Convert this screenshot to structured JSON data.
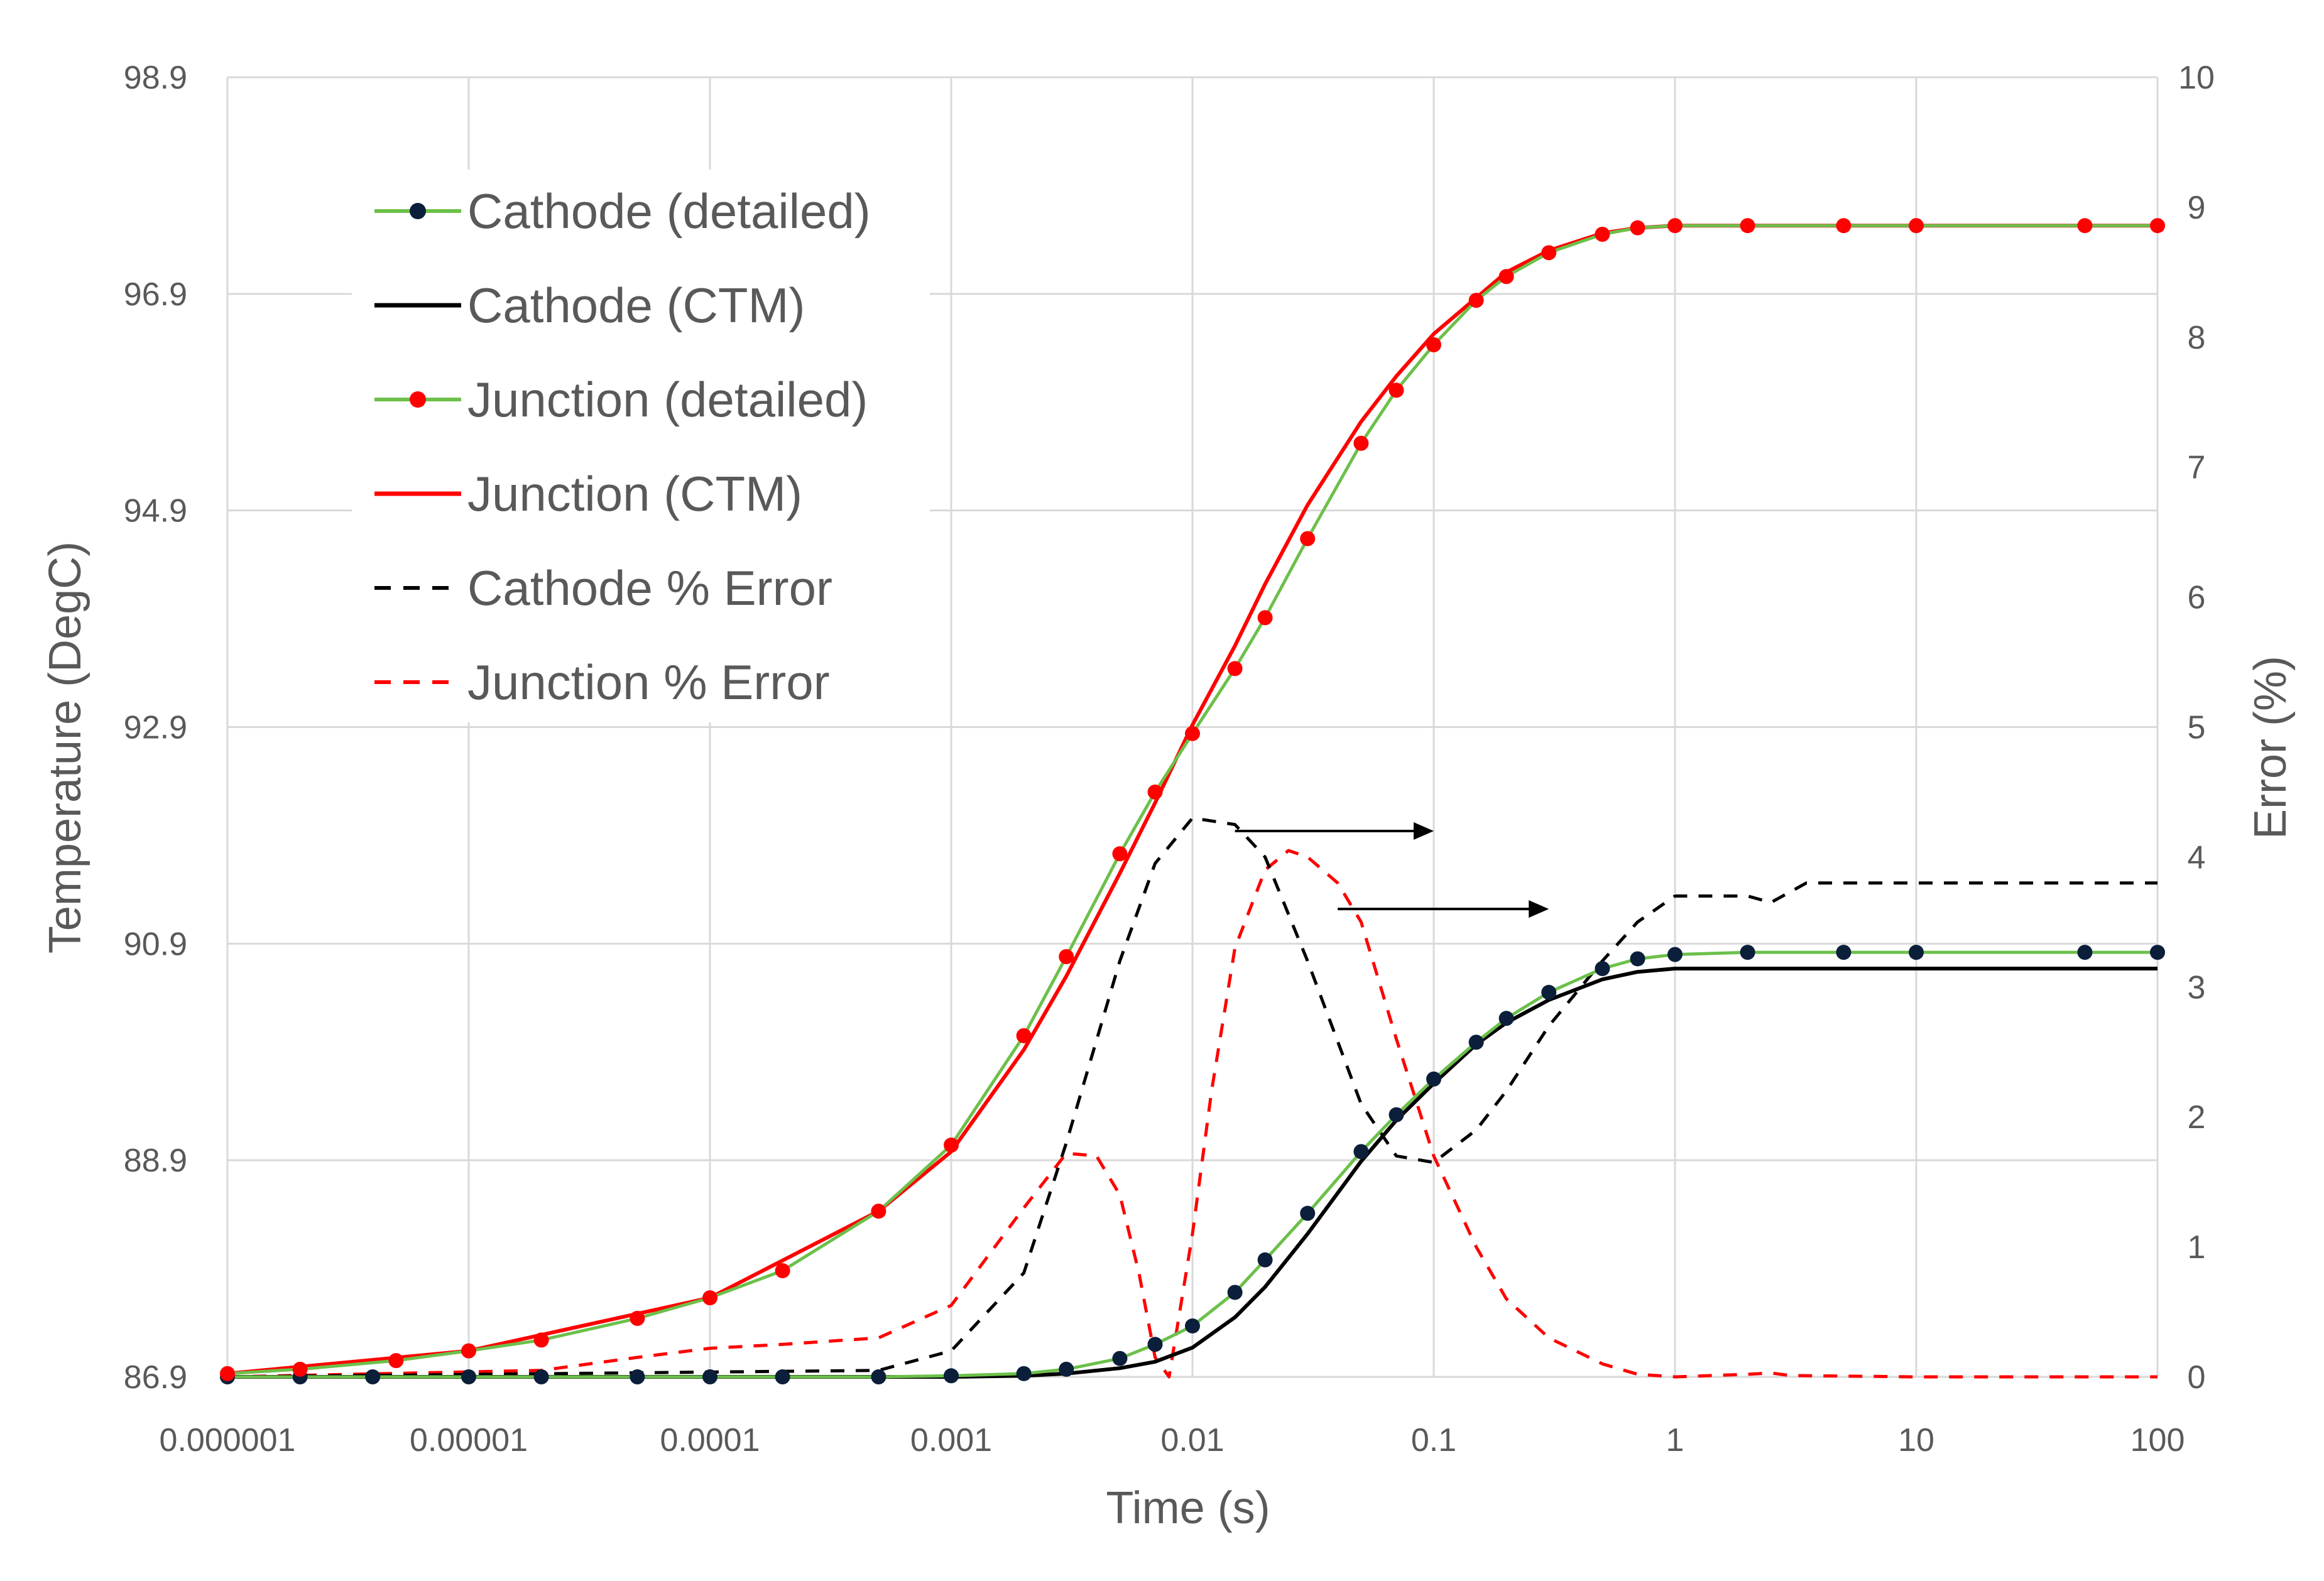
{
  "chart_data": {
    "type": "line",
    "xlabel": "Time (s)",
    "ylabel": "Temperature (DegC)",
    "y2label": "Error (%)",
    "x_scale": "log",
    "xlim": [
      1e-06,
      100
    ],
    "ylim": [
      86.9,
      98.9
    ],
    "y2lim": [
      0,
      10
    ],
    "grid": true,
    "legend_position": "top-left",
    "x_ticks": [
      "0.000001",
      "0.00001",
      "0.0001",
      "0.001",
      "0.01",
      "0.1",
      "1",
      "10",
      "100"
    ],
    "y_ticks": [
      "86.9",
      "88.9",
      "90.9",
      "92.9",
      "94.9",
      "96.9",
      "98.9"
    ],
    "y2_ticks": [
      "0",
      "1",
      "2",
      "3",
      "4",
      "5",
      "6",
      "7",
      "8",
      "9",
      "10"
    ],
    "colors": {
      "cathode_line": "#6cc04a",
      "cathode_marker": "#0b1f3a",
      "junction_marker": "#ff0000",
      "cathode_ctm": "#000000",
      "junction_ctm": "#ff0000",
      "cathode_error": "#000000",
      "junction_error": "#ff0000",
      "grid": "#d9d9d9"
    },
    "series": [
      {
        "name": "Cathode (detailed)",
        "axis": "left",
        "style": "line-markers",
        "x": [
          1e-06,
          2e-06,
          4e-06,
          1e-05,
          2e-05,
          5e-05,
          0.0001,
          0.0002,
          0.0005,
          0.001,
          0.002,
          0.003,
          0.005,
          0.007,
          0.01,
          0.015,
          0.02,
          0.03,
          0.05,
          0.07,
          0.1,
          0.15,
          0.2,
          0.3,
          0.5,
          0.7,
          1,
          2,
          5,
          10,
          50,
          100
        ],
        "y": [
          86.9,
          86.9,
          86.9,
          86.9,
          86.9,
          86.9,
          86.9,
          86.9,
          86.9,
          86.91,
          86.93,
          86.97,
          87.07,
          87.2,
          87.37,
          87.68,
          87.98,
          88.41,
          88.98,
          89.32,
          89.65,
          89.99,
          90.21,
          90.45,
          90.67,
          90.76,
          90.8,
          90.82,
          90.82,
          90.82,
          90.82,
          90.82
        ]
      },
      {
        "name": "Cathode (CTM)",
        "axis": "left",
        "style": "solid",
        "x": [
          1e-06,
          0.0001,
          0.001,
          0.002,
          0.003,
          0.005,
          0.007,
          0.01,
          0.015,
          0.02,
          0.03,
          0.05,
          0.07,
          0.1,
          0.15,
          0.2,
          0.3,
          0.5,
          0.7,
          1,
          2,
          5,
          10,
          100
        ],
        "y": [
          86.9,
          86.9,
          86.9,
          86.91,
          86.93,
          86.98,
          87.04,
          87.17,
          87.45,
          87.73,
          88.22,
          88.89,
          89.27,
          89.61,
          89.97,
          90.17,
          90.38,
          90.57,
          90.64,
          90.67,
          90.67,
          90.67,
          90.67,
          90.67
        ]
      },
      {
        "name": "Junction (detailed)",
        "axis": "left",
        "style": "line-markers",
        "x": [
          1e-06,
          2e-06,
          5e-06,
          1e-05,
          2e-05,
          5e-05,
          0.0001,
          0.0002,
          0.0005,
          0.001,
          0.002,
          0.003,
          0.005,
          0.007,
          0.01,
          0.015,
          0.02,
          0.03,
          0.05,
          0.07,
          0.1,
          0.15,
          0.2,
          0.3,
          0.5,
          0.7,
          1,
          2,
          5,
          10,
          50,
          100
        ],
        "y": [
          86.93,
          86.97,
          87.05,
          87.14,
          87.24,
          87.44,
          87.63,
          87.88,
          88.43,
          89.04,
          90.05,
          90.78,
          91.73,
          92.3,
          92.84,
          93.44,
          93.91,
          94.64,
          95.52,
          96.01,
          96.43,
          96.84,
          97.06,
          97.28,
          97.45,
          97.51,
          97.53,
          97.53,
          97.53,
          97.53,
          97.53,
          97.53
        ]
      },
      {
        "name": "Junction (CTM)",
        "axis": "left",
        "style": "solid",
        "x": [
          1e-06,
          1e-05,
          0.0001,
          0.0005,
          0.001,
          0.002,
          0.003,
          0.005,
          0.007,
          0.01,
          0.015,
          0.02,
          0.03,
          0.05,
          0.07,
          0.1,
          0.2,
          0.3,
          0.5,
          0.7,
          1,
          2,
          5,
          10,
          100
        ],
        "y": [
          86.93,
          87.14,
          87.63,
          88.43,
          88.98,
          89.92,
          90.6,
          91.55,
          92.2,
          92.92,
          93.65,
          94.22,
          94.95,
          95.72,
          96.14,
          96.53,
          97.1,
          97.3,
          97.46,
          97.51,
          97.53,
          97.53,
          97.53,
          97.53,
          97.53
        ]
      },
      {
        "name": "Cathode % Error",
        "axis": "right",
        "style": "dashed",
        "x": [
          1e-06,
          0.0005,
          0.001,
          0.002,
          0.003,
          0.005,
          0.007,
          0.01,
          0.015,
          0.02,
          0.03,
          0.05,
          0.07,
          0.1,
          0.15,
          0.2,
          0.3,
          0.5,
          0.7,
          1,
          2,
          2.5,
          3.5,
          10,
          100
        ],
        "y": [
          0,
          0.05,
          0.2,
          0.8,
          1.8,
          3.2,
          3.95,
          4.3,
          4.25,
          4.0,
          3.2,
          2.1,
          1.7,
          1.65,
          1.9,
          2.2,
          2.7,
          3.2,
          3.5,
          3.7,
          3.7,
          3.65,
          3.8,
          3.8,
          3.8
        ]
      },
      {
        "name": "Junction % Error",
        "axis": "right",
        "style": "dashed",
        "x": [
          1e-06,
          2e-05,
          5e-05,
          0.0001,
          0.0002,
          0.0005,
          0.001,
          0.002,
          0.003,
          0.004,
          0.005,
          0.006,
          0.007,
          0.008,
          0.01,
          0.012,
          0.015,
          0.02,
          0.025,
          0.03,
          0.04,
          0.05,
          0.07,
          0.1,
          0.15,
          0.2,
          0.3,
          0.5,
          0.7,
          1,
          2,
          2.5,
          3,
          10,
          100
        ],
        "y": [
          0,
          0.05,
          0.15,
          0.22,
          0.25,
          0.3,
          0.55,
          1.3,
          1.72,
          1.7,
          1.4,
          0.8,
          0.15,
          0.0,
          1.1,
          2.2,
          3.3,
          3.9,
          4.05,
          4.0,
          3.8,
          3.5,
          2.6,
          1.7,
          1.0,
          0.6,
          0.3,
          0.1,
          0.02,
          0,
          0.02,
          0.03,
          0.01,
          0,
          0
        ]
      }
    ],
    "legend": [
      {
        "label": "Cathode (detailed)",
        "series": 0
      },
      {
        "label": "Cathode (CTM)",
        "series": 1
      },
      {
        "label": "Junction (detailed)",
        "series": 2
      },
      {
        "label": "Junction (CTM)",
        "series": 3
      },
      {
        "label": "Cathode % Error",
        "series": 4
      },
      {
        "label": "Junction % Error",
        "series": 5
      }
    ],
    "annotations": [
      {
        "type": "arrow",
        "direction": "right",
        "from": {
          "x": 0.015,
          "y2": 4.2
        },
        "to": {
          "x": 0.1,
          "y2": 4.2
        }
      },
      {
        "type": "arrow",
        "direction": "right",
        "from": {
          "x": 0.04,
          "y2": 3.6
        },
        "to": {
          "x": 0.3,
          "y2": 3.6
        }
      }
    ]
  }
}
